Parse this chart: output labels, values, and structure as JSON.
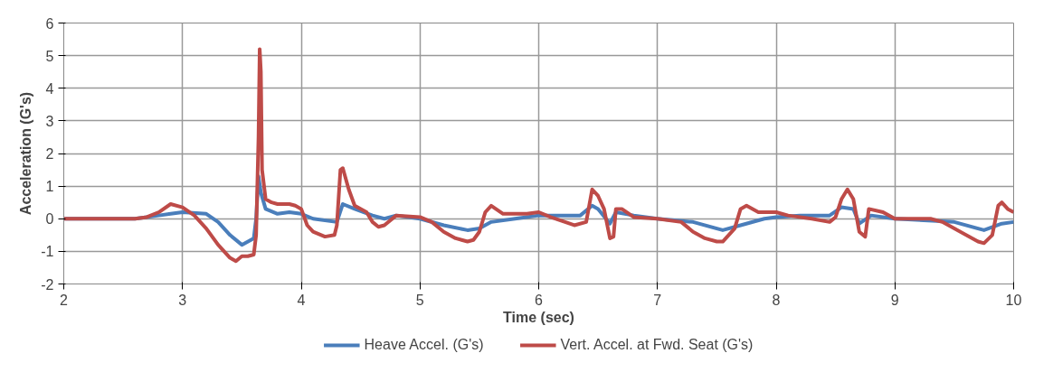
{
  "chart_data": {
    "type": "line",
    "xlabel": "Time (sec)",
    "ylabel": "Acceleration (G's)",
    "xlim": [
      2,
      10
    ],
    "xticks": [
      2,
      3,
      4,
      5,
      6,
      7,
      8,
      9,
      10
    ],
    "ylim": [
      -2,
      6
    ],
    "yticks": [
      -2,
      -1,
      0,
      1,
      2,
      3,
      4,
      5,
      6
    ],
    "grid": true,
    "legend": "bottom",
    "series": [
      {
        "name": "Heave Accel. (G's)",
        "color": "#4a7ebb",
        "x": [
          2.0,
          2.6,
          2.8,
          2.9,
          3.0,
          3.2,
          3.3,
          3.4,
          3.5,
          3.6,
          3.62,
          3.64,
          3.66,
          3.7,
          3.8,
          3.9,
          4.0,
          4.1,
          4.3,
          4.35,
          4.45,
          4.6,
          4.7,
          4.8,
          5.0,
          5.2,
          5.4,
          5.5,
          5.6,
          5.8,
          6.0,
          6.2,
          6.35,
          6.45,
          6.5,
          6.6,
          6.65,
          6.8,
          7.0,
          7.3,
          7.55,
          7.7,
          7.9,
          8.0,
          8.2,
          8.45,
          8.55,
          8.65,
          8.7,
          8.8,
          9.0,
          9.5,
          9.75,
          9.9,
          10.0
        ],
        "values": [
          0,
          0,
          0.1,
          0.15,
          0.2,
          0.15,
          -0.1,
          -0.5,
          -0.8,
          -0.6,
          0.0,
          1.3,
          0.8,
          0.3,
          0.15,
          0.2,
          0.15,
          0.0,
          -0.1,
          0.45,
          0.3,
          0.1,
          0.0,
          0.1,
          0.0,
          -0.2,
          -0.35,
          -0.3,
          -0.1,
          0.0,
          0.1,
          0.1,
          0.1,
          0.4,
          0.3,
          -0.15,
          0.2,
          0.1,
          0.0,
          -0.1,
          -0.35,
          -0.2,
          0.0,
          0.05,
          0.1,
          0.1,
          0.35,
          0.3,
          -0.15,
          0.1,
          0.0,
          -0.1,
          -0.35,
          -0.15,
          -0.1
        ]
      },
      {
        "name": "Vert. Accel. at Fwd. Seat (G's)",
        "color": "#be4b48",
        "x": [
          2.0,
          2.6,
          2.7,
          2.8,
          2.9,
          3.0,
          3.1,
          3.2,
          3.3,
          3.4,
          3.45,
          3.5,
          3.55,
          3.6,
          3.62,
          3.64,
          3.65,
          3.66,
          3.67,
          3.7,
          3.75,
          3.8,
          3.9,
          3.95,
          4.0,
          4.05,
          4.1,
          4.2,
          4.28,
          4.3,
          4.33,
          4.35,
          4.4,
          4.45,
          4.55,
          4.6,
          4.65,
          4.7,
          4.8,
          5.0,
          5.1,
          5.2,
          5.3,
          5.4,
          5.45,
          5.5,
          5.55,
          5.6,
          5.7,
          5.9,
          6.0,
          6.1,
          6.3,
          6.4,
          6.45,
          6.5,
          6.55,
          6.6,
          6.63,
          6.65,
          6.7,
          6.8,
          7.0,
          7.2,
          7.3,
          7.4,
          7.5,
          7.55,
          7.65,
          7.7,
          7.75,
          7.85,
          8.0,
          8.1,
          8.3,
          8.45,
          8.5,
          8.55,
          8.6,
          8.65,
          8.7,
          8.75,
          8.78,
          8.9,
          9.0,
          9.3,
          9.4,
          9.5,
          9.7,
          9.75,
          9.82,
          9.87,
          9.9,
          9.95,
          10.0
        ],
        "values": [
          0,
          0,
          0.05,
          0.2,
          0.45,
          0.35,
          0.1,
          -0.3,
          -0.8,
          -1.2,
          -1.3,
          -1.15,
          -1.15,
          -1.1,
          -0.5,
          2.5,
          5.2,
          4.5,
          1.5,
          0.6,
          0.5,
          0.45,
          0.45,
          0.4,
          0.3,
          -0.2,
          -0.4,
          -0.55,
          -0.5,
          -0.2,
          1.5,
          1.55,
          0.9,
          0.4,
          0.2,
          -0.1,
          -0.25,
          -0.2,
          0.1,
          0.05,
          -0.1,
          -0.4,
          -0.6,
          -0.7,
          -0.65,
          -0.4,
          0.2,
          0.4,
          0.15,
          0.15,
          0.2,
          0.05,
          -0.2,
          -0.1,
          0.9,
          0.7,
          0.3,
          -0.6,
          -0.55,
          0.3,
          0.3,
          0.05,
          0.0,
          -0.1,
          -0.4,
          -0.6,
          -0.7,
          -0.7,
          -0.3,
          0.3,
          0.4,
          0.2,
          0.2,
          0.1,
          0.0,
          -0.1,
          0.05,
          0.6,
          0.9,
          0.6,
          -0.4,
          -0.55,
          0.3,
          0.2,
          0.0,
          0.0,
          -0.1,
          -0.3,
          -0.7,
          -0.75,
          -0.5,
          0.4,
          0.5,
          0.3,
          0.2
        ]
      }
    ]
  }
}
